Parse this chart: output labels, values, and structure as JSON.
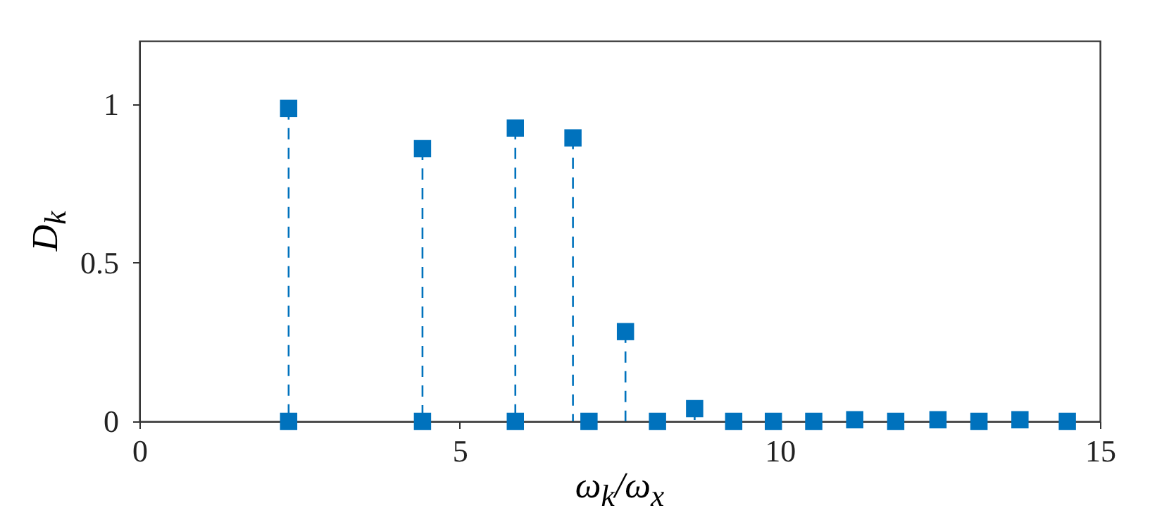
{
  "chart_data": {
    "type": "lollipop",
    "xlabel": "ω$_{k}$/ω$_{x}$",
    "ylabel": "D$_{k}$",
    "xlim": [
      0,
      15
    ],
    "ylim": [
      0,
      1.2
    ],
    "xticks": [
      0,
      5,
      10,
      15
    ],
    "yticks": [
      0,
      0.5,
      1
    ],
    "marker": "square",
    "line_style": "dashed",
    "series": [
      {
        "type": "lollipop",
        "color": "#0072bd",
        "x": [
          2.33,
          4.42,
          5.87,
          6.77,
          7.59,
          8.67,
          11.17,
          12.47,
          13.75
        ],
        "values": [
          0.987,
          0.86,
          0.925,
          0.894,
          0.283,
          0.04,
          0.005,
          0.005,
          0.005
        ]
      },
      {
        "type": "scatter",
        "color": "#0072bd",
        "x": [
          2.33,
          4.42,
          5.87,
          7.02,
          8.09,
          9.28,
          9.9,
          10.53,
          11.81,
          13.11,
          14.49
        ],
        "values": [
          0,
          0,
          0,
          0,
          0,
          0,
          0,
          0,
          0,
          0,
          0
        ]
      }
    ]
  }
}
